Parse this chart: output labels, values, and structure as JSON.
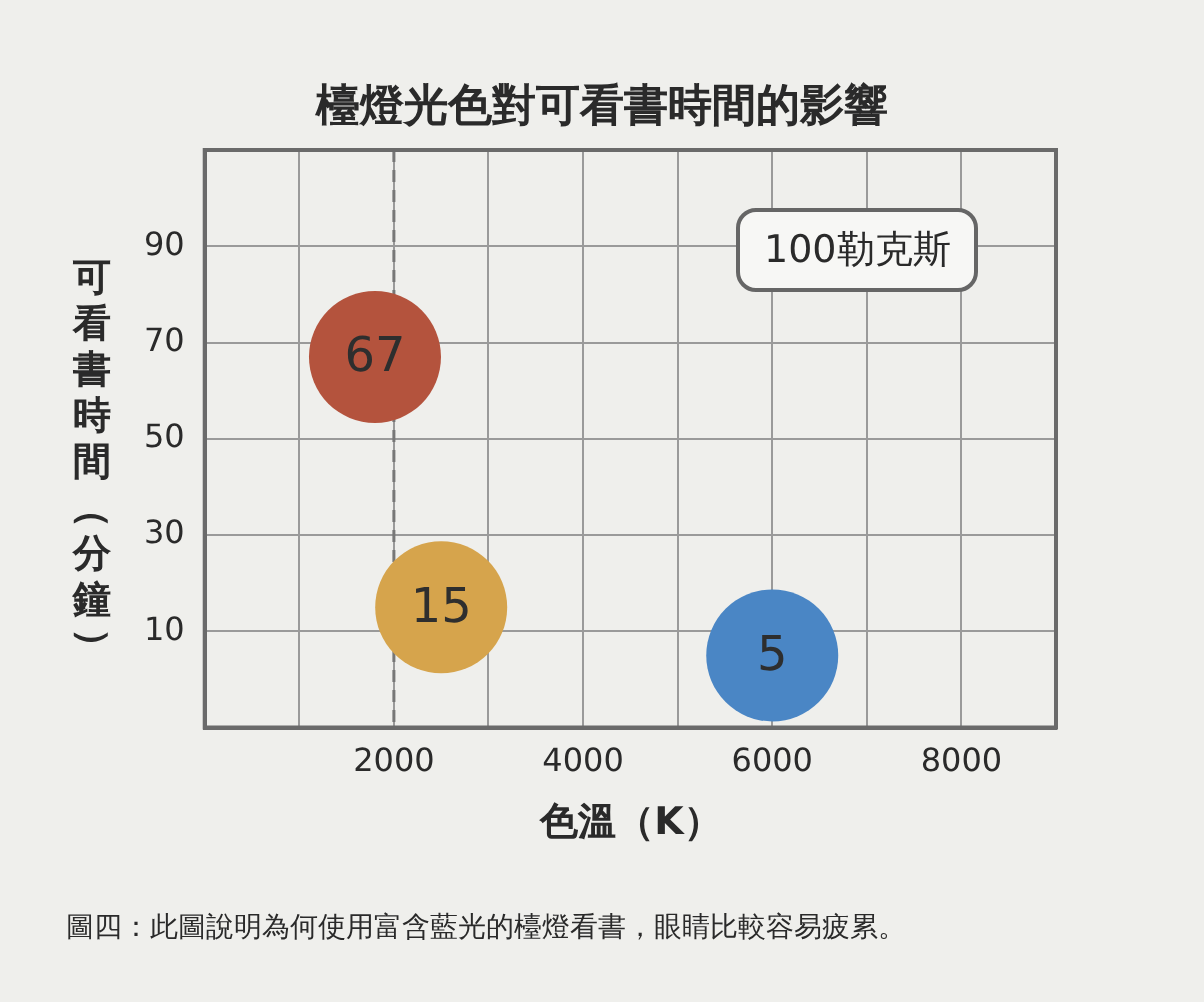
{
  "chart_data": {
    "type": "bubble",
    "title": "檯燈光色對可看書時間的影響",
    "xlabel": "色溫（K）",
    "ylabel": "可看書時間（分鐘）",
    "annotations": [
      "100勒克斯",
      "圖四：此圖說明為何使用富含藍光的檯燈看書，眼睛比較容易疲累。"
    ],
    "x": [
      1800,
      2500,
      6000
    ],
    "values": [
      67,
      15,
      5
    ],
    "sizes": [
      1,
      1,
      1
    ],
    "colors": [
      "#b4533d",
      "#d6a44c",
      "#4a86c5"
    ],
    "data_labels": true,
    "xlim": [
      0,
      9000
    ],
    "xticks": [
      {
        "value": 1000,
        "label": null
      },
      2000,
      {
        "value": 3000,
        "label": null
      },
      4000,
      {
        "value": 5000,
        "label": null
      },
      6000,
      {
        "value": 7000,
        "label": null
      },
      8000
    ],
    "ylim": [
      -10,
      110
    ],
    "yticks": [
      10,
      30,
      50,
      70,
      90
    ],
    "grid": true,
    "legend": false,
    "ref_lines": [
      {
        "axis": "x",
        "value": 2000,
        "line_style": "dashed",
        "color": "#777777"
      }
    ]
  }
}
